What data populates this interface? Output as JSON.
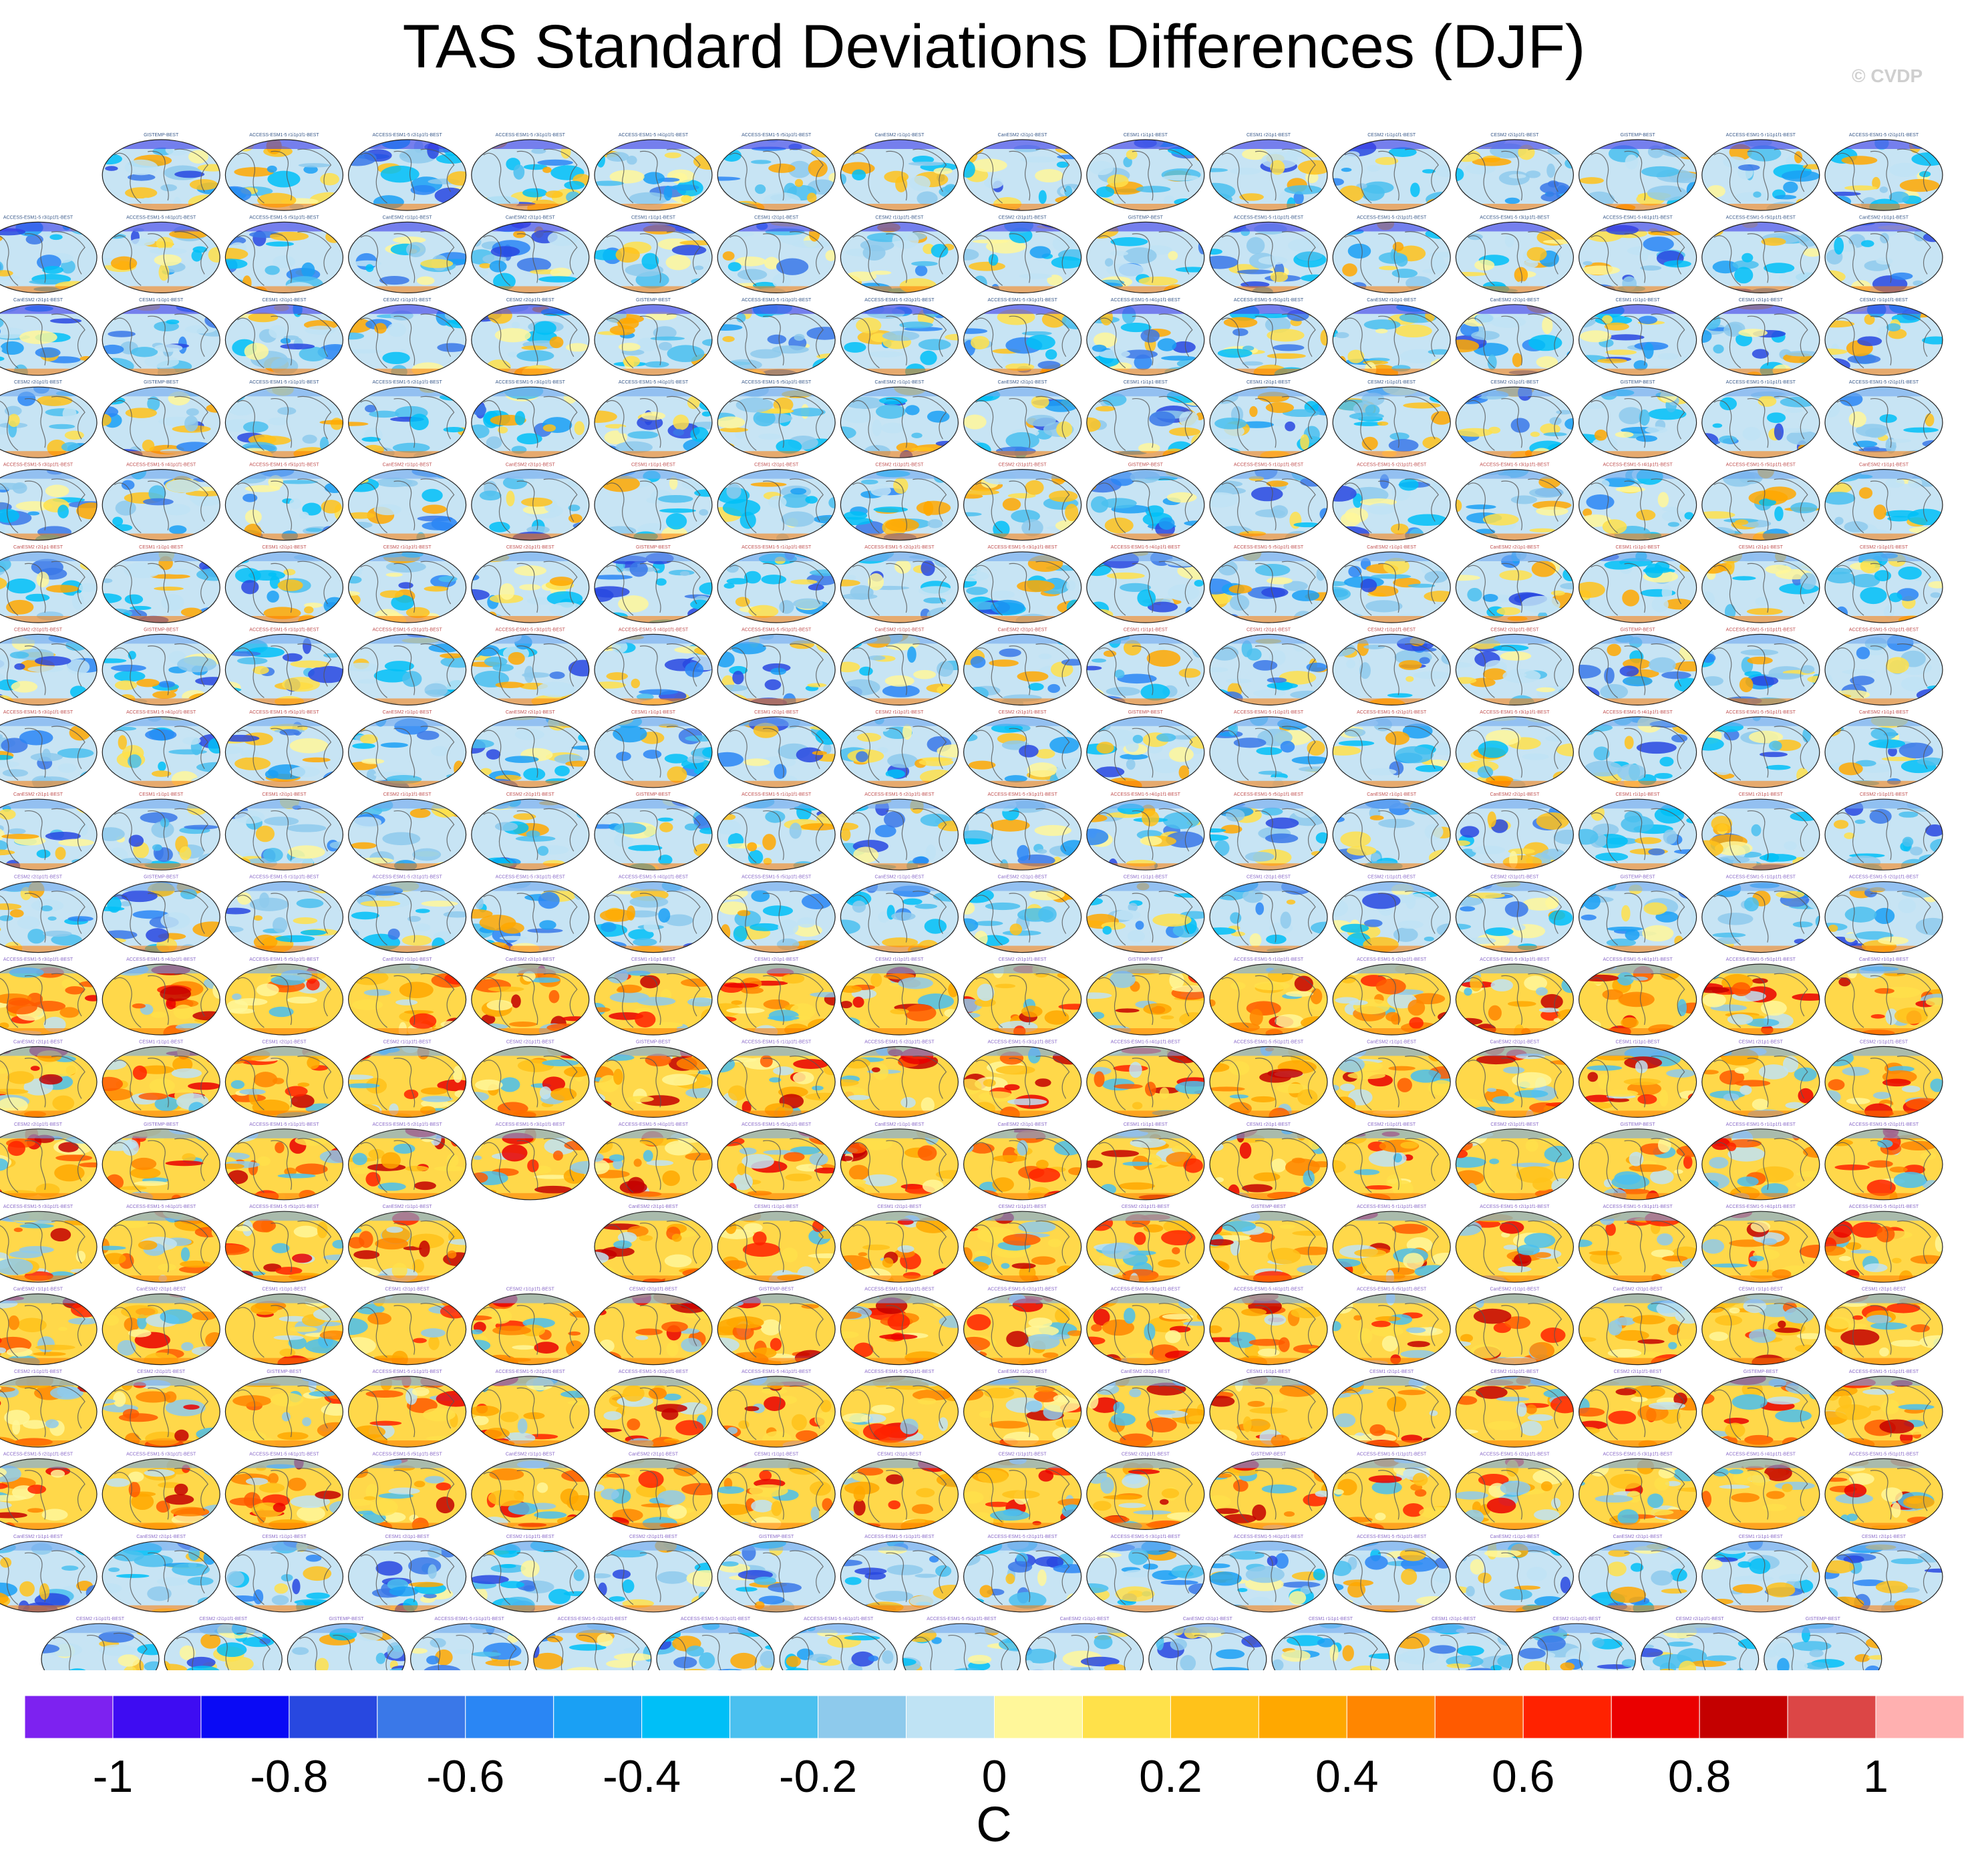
{
  "chart_data": {
    "type": "map-grid",
    "title": "TAS Standard Deviations Differences (DJF)",
    "watermark": "© CVDP",
    "colorbar": {
      "label": "C",
      "range": [
        -1.1,
        1.1
      ],
      "bin_width": 0.1,
      "tick_values": [
        -1,
        -0.8,
        -0.6,
        -0.4,
        -0.2,
        0,
        0.2,
        0.4,
        0.6,
        0.8,
        1
      ],
      "tick_labels": [
        "-1",
        "-0.8",
        "-0.6",
        "-0.4",
        "-0.2",
        "0",
        "0.2",
        "0.4",
        "0.6",
        "0.8",
        "1"
      ],
      "colors": [
        "#7d22f0",
        "#3e0cf2",
        "#0a0af5",
        "#2848e0",
        "#3a78e8",
        "#2a86f4",
        "#1aa0f4",
        "#00bff7",
        "#4ac0ef",
        "#8ecaec",
        "#bfe3f4",
        "#fff79a",
        "#ffe14a",
        "#ffc21a",
        "#ffa800",
        "#ff8600",
        "#ff5a00",
        "#ff2200",
        "#ea0000",
        "#c40000",
        "#dc4646",
        "#ffb0b0"
      ]
    },
    "panel_grid": {
      "columns": 16,
      "rows_full": 18,
      "first_row_blank_slots": [
        0
      ],
      "row_14_blank_slots": [
        4
      ],
      "last_row_panels": 15,
      "panel_count": 301
    },
    "panels": [
      {
        "label": "GISTEMP-BEST",
        "group": "obs"
      },
      {
        "label": "ACCESS-ESM1-5 r1i1p1f1-BEST",
        "group": "ACCESS-ESM1-5"
      },
      {
        "label": "ACCESS-ESM1-5 r2i1p1f1-BEST",
        "group": "ACCESS-ESM1-5"
      },
      {
        "label": "ACCESS-ESM1-5 r3i1p1f1-BEST",
        "group": "ACCESS-ESM1-5"
      },
      {
        "label": "ACCESS-ESM1-5 r4i1p1f1-BEST",
        "group": "ACCESS-ESM1-5"
      },
      {
        "label": "ACCESS-ESM1-5 r5i1p1f1-BEST",
        "group": "ACCESS-ESM1-5"
      },
      {
        "label": "CanESM2 r1i1p1-BEST",
        "group": "CanESM2"
      },
      {
        "label": "CanESM2 r2i1p1-BEST",
        "group": "CanESM2"
      },
      {
        "label": "CESM1 r1i1p1-BEST",
        "group": "CESM1"
      },
      {
        "label": "CESM1 r2i1p1-BEST",
        "group": "CESM1"
      },
      {
        "label": "CESM2 r1i1p1f1-BEST",
        "group": "CESM2"
      },
      {
        "label": "CESM2 r2i1p1f1-BEST",
        "group": "CESM2"
      }
    ]
  }
}
